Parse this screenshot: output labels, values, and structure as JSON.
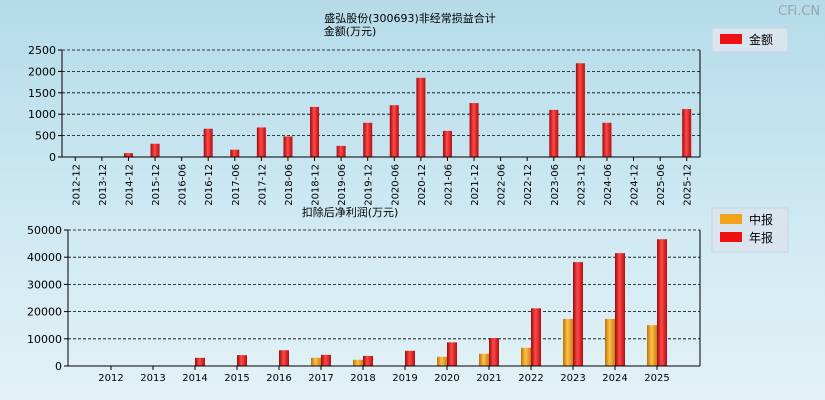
{
  "watermark": "CFi.CN",
  "chart_data": [
    {
      "type": "bar",
      "title": "盛弘股份(300693)非经常损益合计",
      "subtitle": "金额(万元)",
      "categories": [
        "2012-12",
        "2013-12",
        "2014-12",
        "2015-12",
        "2016-06",
        "2016-12",
        "2017-06",
        "2017-12",
        "2018-06",
        "2018-12",
        "2019-06",
        "2019-12",
        "2020-06",
        "2020-12",
        "2021-06",
        "2021-12",
        "2022-06",
        "2022-12",
        "2023-06",
        "2023-12",
        "2024-06",
        "2024-12",
        "2025-06",
        "2025-12"
      ],
      "series": [
        {
          "name": "金额",
          "color": "#ee1111",
          "values": [
            0,
            0,
            90,
            310,
            0,
            660,
            170,
            690,
            480,
            1170,
            260,
            800,
            1210,
            1850,
            610,
            1260,
            0,
            0,
            1100,
            2190,
            800,
            0,
            0,
            1120
          ]
        }
      ],
      "yticks": [
        0,
        500,
        1000,
        1500,
        2000,
        2500
      ],
      "ylim": [
        0,
        2500
      ],
      "grid": true,
      "legend_position": "top-right"
    },
    {
      "type": "bar",
      "title": "扣除后净利润(万元)",
      "categories": [
        "2012",
        "2013",
        "2014",
        "2015",
        "2016",
        "2017",
        "2018",
        "2019",
        "2020",
        "2021",
        "2022",
        "2023",
        "2024",
        "2025"
      ],
      "series": [
        {
          "name": "中报",
          "color": "#f2a11a",
          "values": [
            0,
            0,
            0,
            0,
            0,
            3000,
            2300,
            0,
            3400,
            4500,
            6700,
            17300,
            17300,
            15000
          ]
        },
        {
          "name": "年报",
          "color": "#ee1111",
          "values": [
            0,
            0,
            3000,
            4000,
            5800,
            4100,
            3700,
            5600,
            8700,
            10300,
            21200,
            38200,
            41500,
            46600
          ]
        }
      ],
      "yticks": [
        0,
        10000,
        20000,
        30000,
        40000,
        50000
      ],
      "ylim": [
        0,
        50000
      ],
      "grid": true,
      "legend_position": "top-right"
    }
  ]
}
